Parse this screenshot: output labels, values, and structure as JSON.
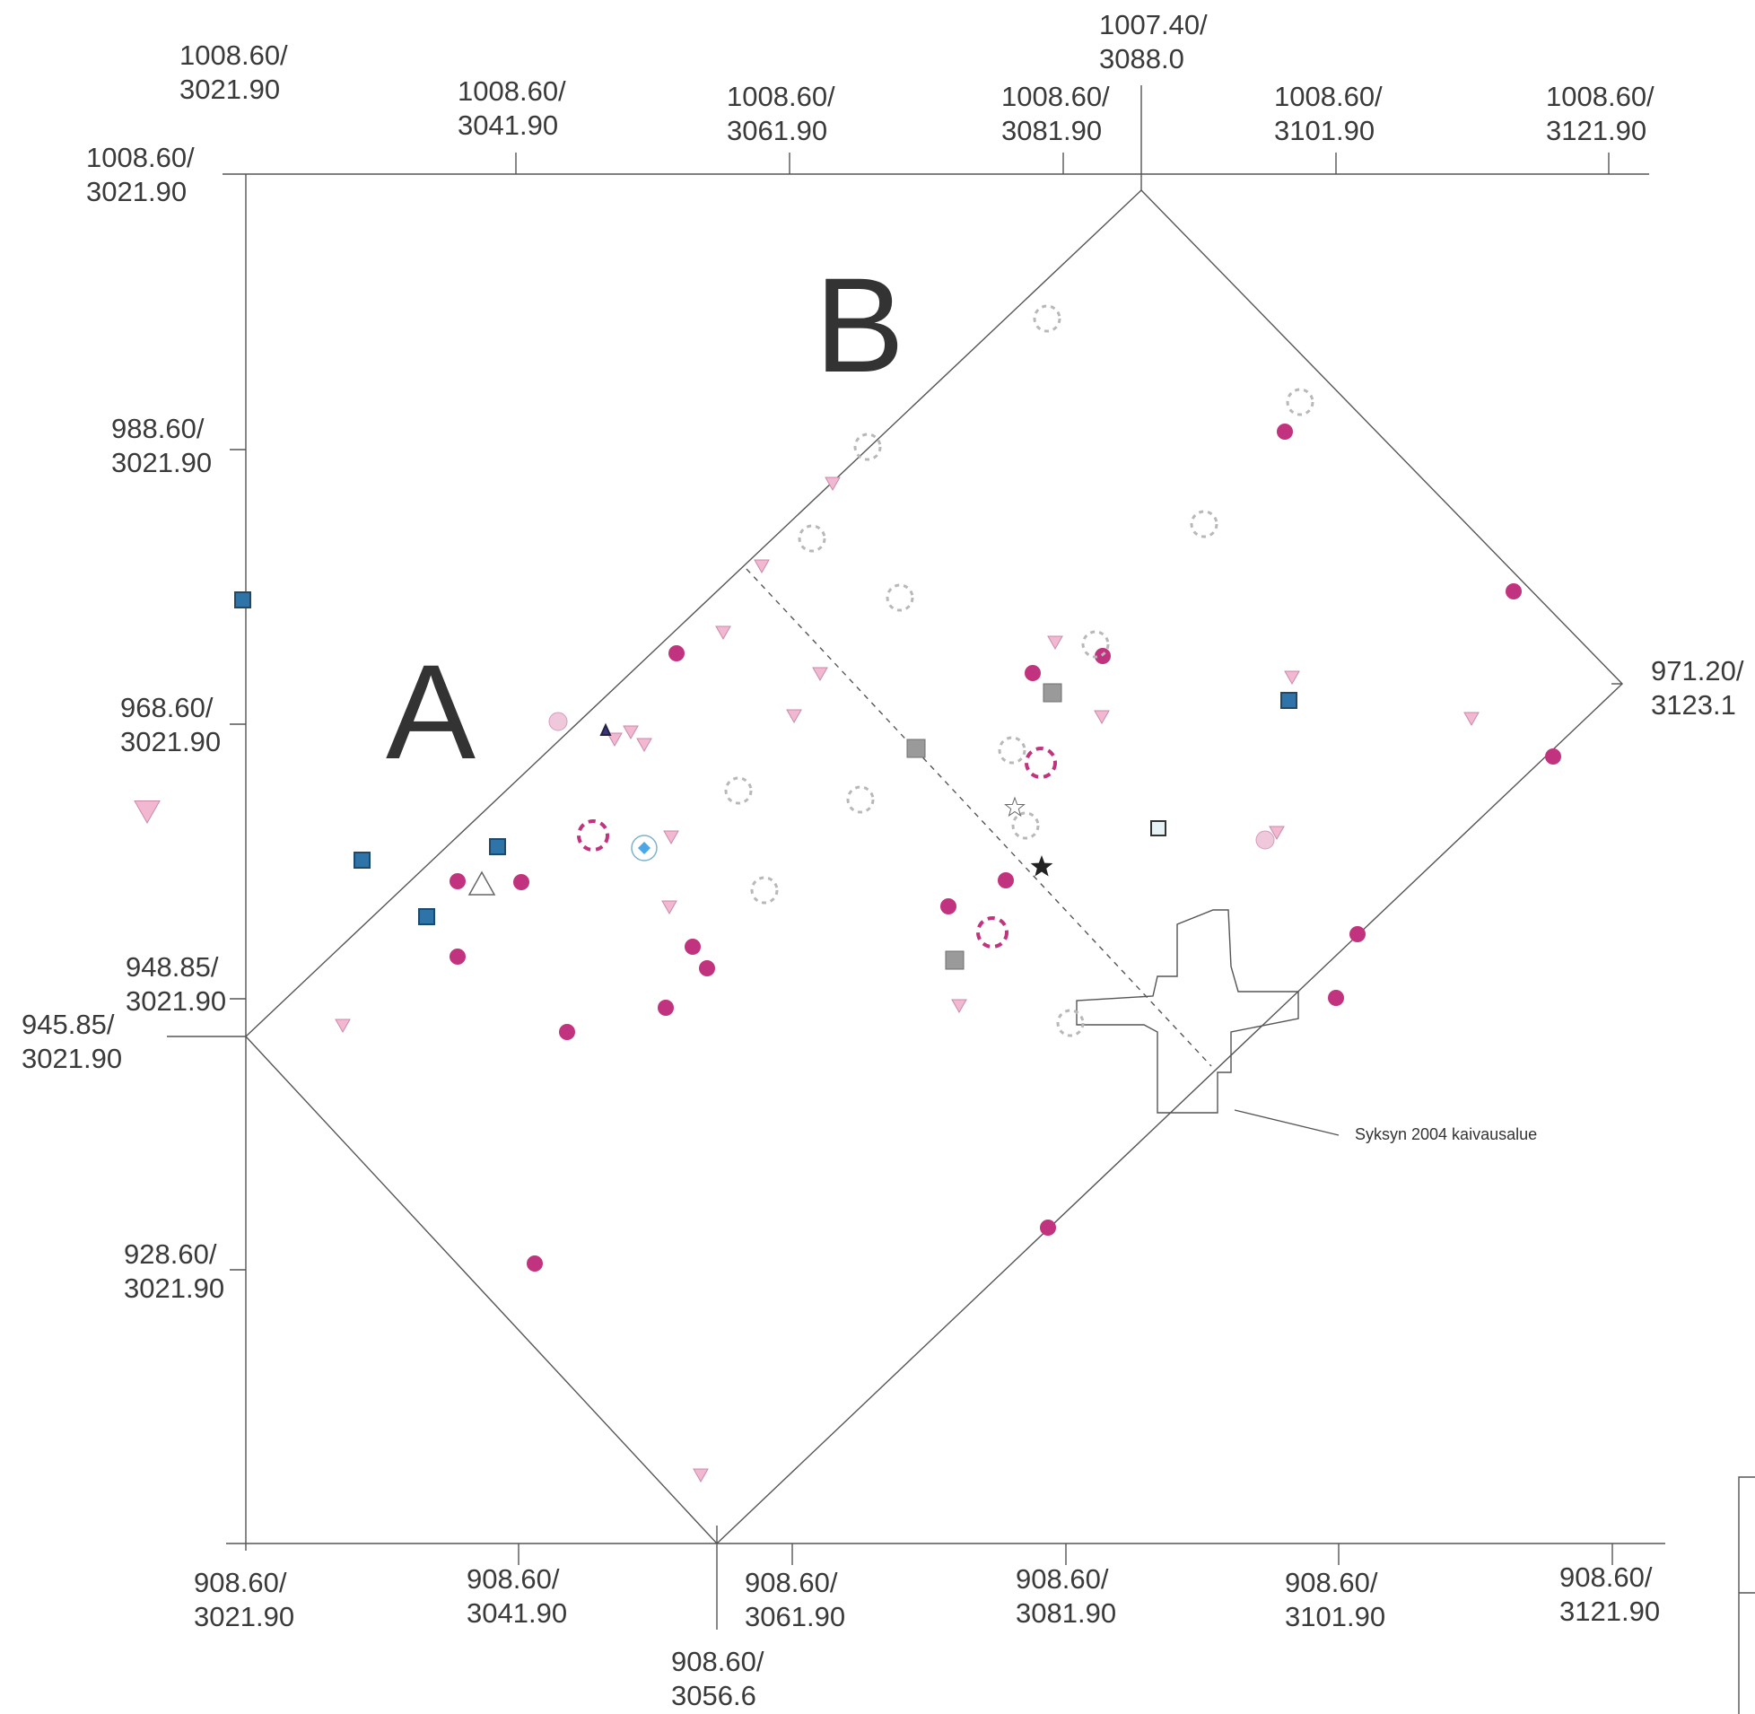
{
  "map": {
    "top_labels": [
      {
        "l1": "1008.60/",
        "l2": "3021.90"
      },
      {
        "l1": "1008.60/",
        "l2": "3041.90"
      },
      {
        "l1": "1008.60/",
        "l2": "3061.90"
      },
      {
        "l1": "1008.60/",
        "l2": "3081.90"
      },
      {
        "l1": "1007.40/",
        "l2": "3088.0"
      },
      {
        "l1": "1008.60/",
        "l2": "3101.90"
      },
      {
        "l1": "1008.60/",
        "l2": "3121.90"
      }
    ],
    "corner_label": {
      "l1": "1008.60/",
      "l2": "3021.90"
    },
    "left_labels": [
      {
        "l1": "988.60/",
        "l2": "3021.90"
      },
      {
        "l1": "968.60/",
        "l2": "3021.90"
      },
      {
        "l1": "948.85/",
        "l2": "3021.90"
      },
      {
        "l1": "945.85/",
        "l2": "3021.90"
      },
      {
        "l1": "928.60/",
        "l2": "3021.90"
      }
    ],
    "right_label": {
      "l1": "971.20/",
      "l2": "3123.1"
    },
    "bottom_labels": [
      {
        "l1": "908.60/",
        "l2": "3021.90"
      },
      {
        "l1": "908.60/",
        "l2": "3041.90"
      },
      {
        "l1": "908.60/",
        "l2": "3061.90"
      },
      {
        "l1": "908.60/",
        "l2": "3081.90"
      },
      {
        "l1": "908.60/",
        "l2": "3101.90"
      },
      {
        "l1": "908.60/",
        "l2": "3121.90"
      },
      {
        "l1": "908.60/",
        "l2": "3056.6"
      }
    ],
    "area_a": "A",
    "area_b": "B",
    "excavation_note": "Syksyn 2004 kaivausalue",
    "colors": {
      "magenta_dot": "#c2337f",
      "pink_triangle": "#f2b8d2",
      "blue_square": "#2f74a8",
      "gray_square": "#9a9a9a",
      "dashed_gray": "#b8b8b8",
      "dashed_magenta": "#c2337f",
      "pale_circle": "#f0c8dc",
      "navy_triangle": "#3a3580",
      "diamond_blue": "#4da6e6"
    },
    "symbol_types": [
      "magenta-dot",
      "pink-triangle",
      "blue-square",
      "gray-square",
      "dashed-gray-circle",
      "dashed-magenta-circle",
      "pale-pink-circle",
      "black-star",
      "outline-star",
      "outline-triangle",
      "navy-triangle",
      "diamond-circle",
      "light-square"
    ]
  }
}
